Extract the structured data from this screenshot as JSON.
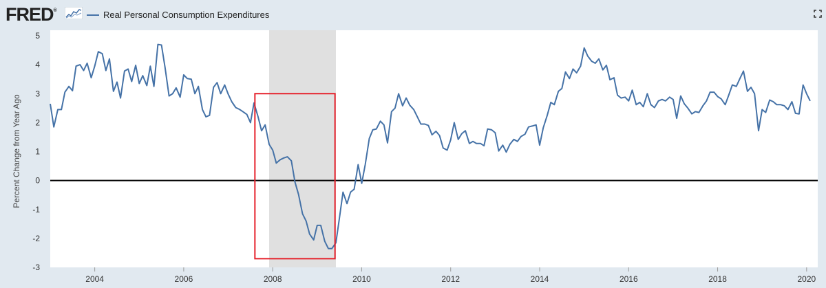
{
  "header": {
    "logo_text": "FRED",
    "logo_reg": "®",
    "legend_label": "Real Personal Consumption Expenditures"
  },
  "colors": {
    "series": "#4572a7",
    "recession": "#e0e0e0",
    "highlight": "#e5212b",
    "background": "#e1e9f0",
    "plot_background": "#ffffff"
  },
  "chart_data": {
    "type": "line",
    "title": "",
    "xlabel": "",
    "ylabel": "Percent Change from Year Ago",
    "xlim": [
      2003.0,
      2020.25
    ],
    "ylim": [
      -3,
      5
    ],
    "x_ticks": [
      "2004",
      "2006",
      "2008",
      "2010",
      "2012",
      "2014",
      "2016",
      "2018",
      "2020"
    ],
    "y_ticks": [
      "-3",
      "-2",
      "-1",
      "0",
      "1",
      "2",
      "3",
      "4",
      "5"
    ],
    "recession_shading": [
      [
        2007.92,
        2009.42
      ]
    ],
    "highlight_box": {
      "x": [
        2007.6,
        2009.4
      ],
      "y": [
        -2.7,
        3.0
      ]
    },
    "zero_line": 0,
    "series": [
      {
        "name": "Real Personal Consumption Expenditures",
        "values": [
          [
            2003.0,
            2.65
          ],
          [
            2003.08,
            1.85
          ],
          [
            2003.17,
            2.45
          ],
          [
            2003.25,
            2.45
          ],
          [
            2003.33,
            3.05
          ],
          [
            2003.42,
            3.25
          ],
          [
            2003.5,
            3.1
          ],
          [
            2003.58,
            3.95
          ],
          [
            2003.67,
            4.0
          ],
          [
            2003.75,
            3.8
          ],
          [
            2003.83,
            4.05
          ],
          [
            2003.92,
            3.55
          ],
          [
            2004.0,
            3.95
          ],
          [
            2004.08,
            4.45
          ],
          [
            2004.17,
            4.38
          ],
          [
            2004.25,
            3.8
          ],
          [
            2004.33,
            4.2
          ],
          [
            2004.42,
            3.08
          ],
          [
            2004.5,
            3.4
          ],
          [
            2004.58,
            2.85
          ],
          [
            2004.67,
            3.78
          ],
          [
            2004.75,
            3.85
          ],
          [
            2004.83,
            3.42
          ],
          [
            2004.92,
            3.98
          ],
          [
            2005.0,
            3.35
          ],
          [
            2005.08,
            3.62
          ],
          [
            2005.17,
            3.28
          ],
          [
            2005.25,
            3.95
          ],
          [
            2005.33,
            3.25
          ],
          [
            2005.42,
            4.7
          ],
          [
            2005.5,
            4.68
          ],
          [
            2005.58,
            3.9
          ],
          [
            2005.67,
            2.92
          ],
          [
            2005.75,
            3.0
          ],
          [
            2005.83,
            3.2
          ],
          [
            2005.92,
            2.88
          ],
          [
            2006.0,
            3.65
          ],
          [
            2006.08,
            3.52
          ],
          [
            2006.17,
            3.5
          ],
          [
            2006.25,
            3.0
          ],
          [
            2006.33,
            3.25
          ],
          [
            2006.42,
            2.45
          ],
          [
            2006.5,
            2.2
          ],
          [
            2006.58,
            2.25
          ],
          [
            2006.67,
            3.22
          ],
          [
            2006.75,
            3.38
          ],
          [
            2006.83,
            3.0
          ],
          [
            2006.92,
            3.3
          ],
          [
            2007.0,
            2.98
          ],
          [
            2007.08,
            2.72
          ],
          [
            2007.17,
            2.52
          ],
          [
            2007.25,
            2.46
          ],
          [
            2007.33,
            2.38
          ],
          [
            2007.42,
            2.28
          ],
          [
            2007.5,
            2.0
          ],
          [
            2007.58,
            2.68
          ],
          [
            2007.67,
            2.2
          ],
          [
            2007.75,
            1.72
          ],
          [
            2007.83,
            1.92
          ],
          [
            2007.92,
            1.25
          ],
          [
            2008.0,
            1.05
          ],
          [
            2008.08,
            0.6
          ],
          [
            2008.17,
            0.72
          ],
          [
            2008.25,
            0.78
          ],
          [
            2008.33,
            0.82
          ],
          [
            2008.42,
            0.68
          ],
          [
            2008.5,
            -0.05
          ],
          [
            2008.58,
            -0.48
          ],
          [
            2008.67,
            -1.15
          ],
          [
            2008.75,
            -1.4
          ],
          [
            2008.83,
            -1.85
          ],
          [
            2008.92,
            -2.05
          ],
          [
            2009.0,
            -1.55
          ],
          [
            2009.08,
            -1.55
          ],
          [
            2009.17,
            -2.1
          ],
          [
            2009.25,
            -2.35
          ],
          [
            2009.33,
            -2.35
          ],
          [
            2009.42,
            -2.15
          ],
          [
            2009.5,
            -1.3
          ],
          [
            2009.58,
            -0.4
          ],
          [
            2009.67,
            -0.8
          ],
          [
            2009.75,
            -0.4
          ],
          [
            2009.83,
            -0.3
          ],
          [
            2009.92,
            0.55
          ],
          [
            2010.0,
            -0.1
          ],
          [
            2010.08,
            0.55
          ],
          [
            2010.17,
            1.45
          ],
          [
            2010.25,
            1.75
          ],
          [
            2010.33,
            1.78
          ],
          [
            2010.42,
            2.05
          ],
          [
            2010.5,
            1.92
          ],
          [
            2010.58,
            1.3
          ],
          [
            2010.67,
            2.38
          ],
          [
            2010.75,
            2.5
          ],
          [
            2010.83,
            3.0
          ],
          [
            2010.92,
            2.58
          ],
          [
            2011.0,
            2.85
          ],
          [
            2011.08,
            2.6
          ],
          [
            2011.17,
            2.45
          ],
          [
            2011.25,
            2.2
          ],
          [
            2011.33,
            1.95
          ],
          [
            2011.42,
            1.95
          ],
          [
            2011.5,
            1.9
          ],
          [
            2011.58,
            1.58
          ],
          [
            2011.67,
            1.7
          ],
          [
            2011.75,
            1.55
          ],
          [
            2011.83,
            1.12
          ],
          [
            2011.92,
            1.05
          ],
          [
            2012.0,
            1.4
          ],
          [
            2012.08,
            2.0
          ],
          [
            2012.17,
            1.42
          ],
          [
            2012.25,
            1.62
          ],
          [
            2012.33,
            1.72
          ],
          [
            2012.42,
            1.28
          ],
          [
            2012.5,
            1.35
          ],
          [
            2012.58,
            1.28
          ],
          [
            2012.67,
            1.28
          ],
          [
            2012.75,
            1.2
          ],
          [
            2012.83,
            1.78
          ],
          [
            2012.92,
            1.75
          ],
          [
            2013.0,
            1.65
          ],
          [
            2013.08,
            1.02
          ],
          [
            2013.17,
            1.22
          ],
          [
            2013.25,
            0.98
          ],
          [
            2013.33,
            1.25
          ],
          [
            2013.42,
            1.42
          ],
          [
            2013.5,
            1.35
          ],
          [
            2013.58,
            1.52
          ],
          [
            2013.67,
            1.6
          ],
          [
            2013.75,
            1.85
          ],
          [
            2013.83,
            1.88
          ],
          [
            2013.92,
            1.92
          ],
          [
            2014.0,
            1.22
          ],
          [
            2014.08,
            1.82
          ],
          [
            2014.17,
            2.25
          ],
          [
            2014.25,
            2.7
          ],
          [
            2014.33,
            2.62
          ],
          [
            2014.42,
            3.08
          ],
          [
            2014.5,
            3.18
          ],
          [
            2014.58,
            3.75
          ],
          [
            2014.67,
            3.52
          ],
          [
            2014.75,
            3.85
          ],
          [
            2014.83,
            3.72
          ],
          [
            2014.92,
            3.95
          ],
          [
            2015.0,
            4.58
          ],
          [
            2015.08,
            4.3
          ],
          [
            2015.17,
            4.12
          ],
          [
            2015.25,
            4.05
          ],
          [
            2015.33,
            4.2
          ],
          [
            2015.42,
            3.82
          ],
          [
            2015.5,
            3.98
          ],
          [
            2015.58,
            3.48
          ],
          [
            2015.67,
            3.55
          ],
          [
            2015.75,
            2.95
          ],
          [
            2015.83,
            2.85
          ],
          [
            2015.92,
            2.88
          ],
          [
            2016.0,
            2.75
          ],
          [
            2016.08,
            3.12
          ],
          [
            2016.17,
            2.62
          ],
          [
            2016.25,
            2.7
          ],
          [
            2016.33,
            2.55
          ],
          [
            2016.42,
            3.0
          ],
          [
            2016.5,
            2.62
          ],
          [
            2016.58,
            2.52
          ],
          [
            2016.67,
            2.75
          ],
          [
            2016.75,
            2.8
          ],
          [
            2016.83,
            2.75
          ],
          [
            2016.92,
            2.88
          ],
          [
            2017.0,
            2.8
          ],
          [
            2017.08,
            2.15
          ],
          [
            2017.17,
            2.92
          ],
          [
            2017.25,
            2.65
          ],
          [
            2017.33,
            2.5
          ],
          [
            2017.42,
            2.3
          ],
          [
            2017.5,
            2.38
          ],
          [
            2017.58,
            2.35
          ],
          [
            2017.67,
            2.58
          ],
          [
            2017.75,
            2.75
          ],
          [
            2017.83,
            3.05
          ],
          [
            2017.92,
            3.05
          ],
          [
            2018.0,
            2.9
          ],
          [
            2018.08,
            2.82
          ],
          [
            2018.17,
            2.62
          ],
          [
            2018.25,
            2.95
          ],
          [
            2018.33,
            3.3
          ],
          [
            2018.42,
            3.25
          ],
          [
            2018.5,
            3.52
          ],
          [
            2018.58,
            3.78
          ],
          [
            2018.67,
            3.08
          ],
          [
            2018.75,
            3.22
          ],
          [
            2018.83,
            3.0
          ],
          [
            2018.92,
            1.72
          ],
          [
            2019.0,
            2.45
          ],
          [
            2019.08,
            2.35
          ],
          [
            2019.17,
            2.78
          ],
          [
            2019.25,
            2.72
          ],
          [
            2019.33,
            2.62
          ],
          [
            2019.42,
            2.62
          ],
          [
            2019.5,
            2.58
          ],
          [
            2019.58,
            2.45
          ],
          [
            2019.67,
            2.72
          ],
          [
            2019.75,
            2.32
          ],
          [
            2019.83,
            2.3
          ],
          [
            2019.92,
            3.3
          ],
          [
            2020.0,
            3.0
          ],
          [
            2020.08,
            2.75
          ]
        ]
      }
    ]
  }
}
